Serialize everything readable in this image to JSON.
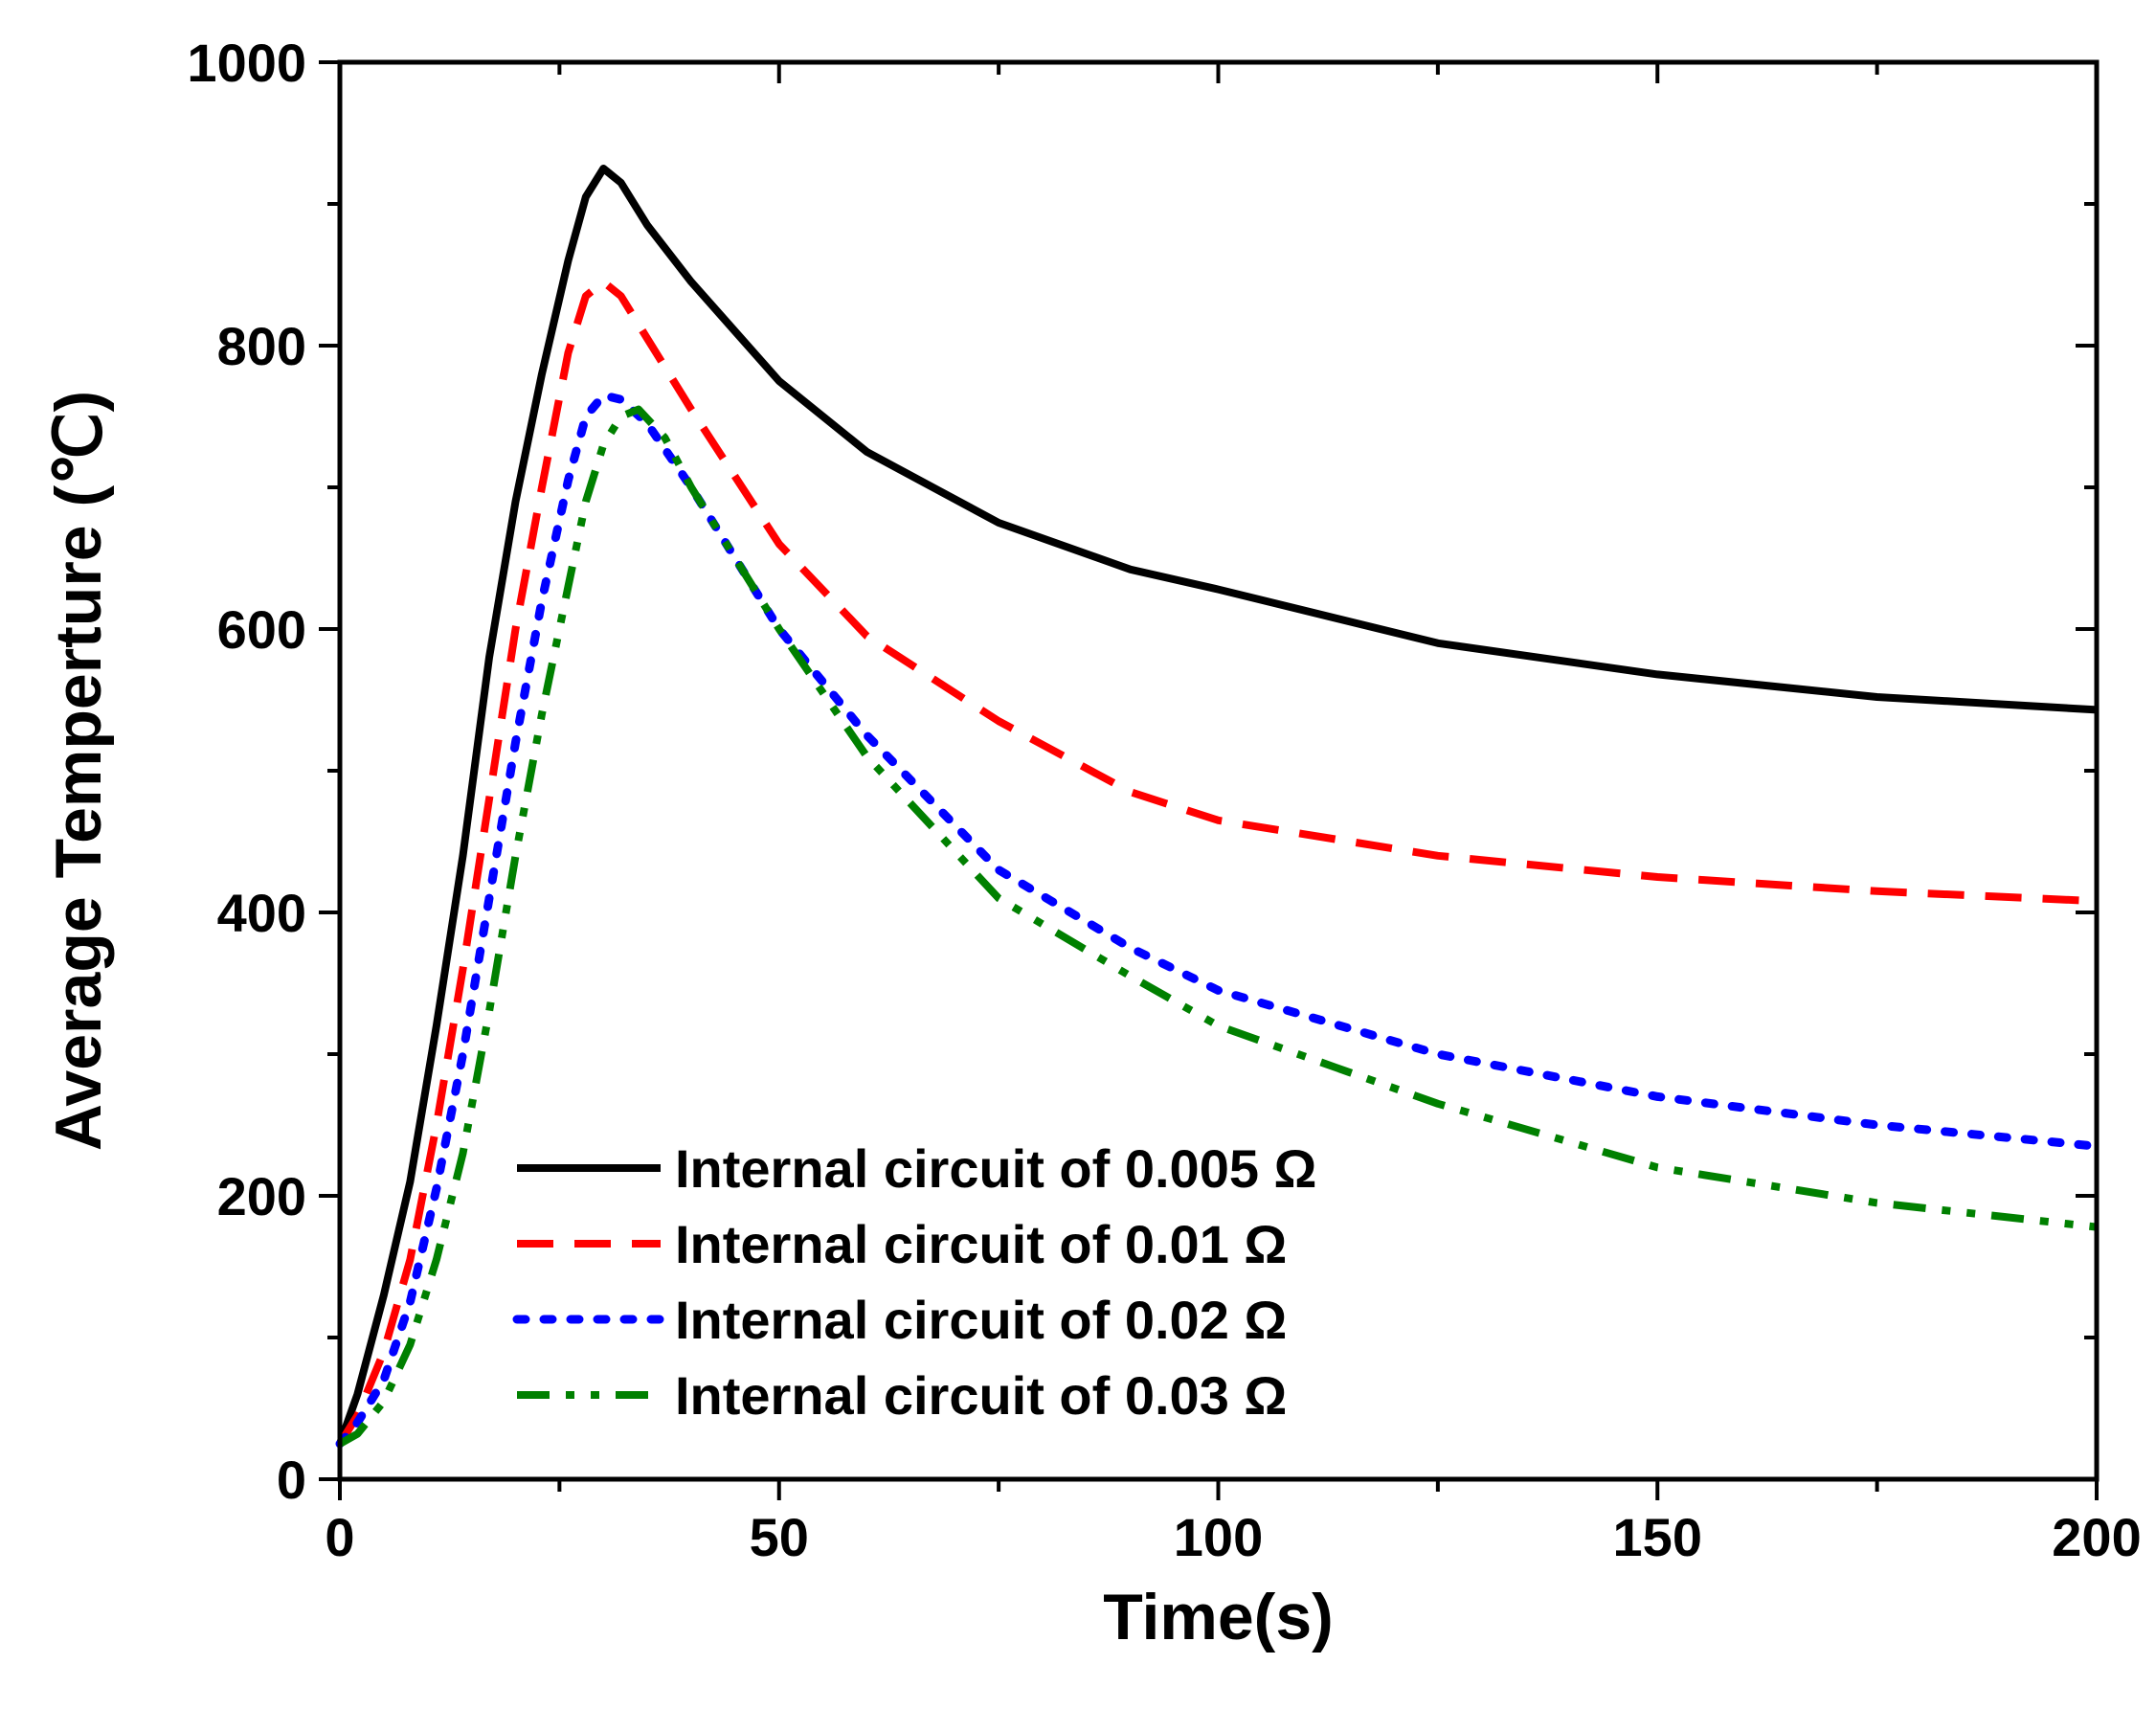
{
  "chart_data": {
    "type": "line",
    "xlabel": "Time(s)",
    "ylabel": "Average Temperture (℃)",
    "xlim": [
      0,
      200
    ],
    "ylim": [
      0,
      1000
    ],
    "x_ticks": [
      0,
      50,
      100,
      150,
      200
    ],
    "y_ticks": [
      0,
      200,
      400,
      600,
      800,
      1000
    ],
    "x_tick_labels": [
      "0",
      "50",
      "100",
      "150",
      "200"
    ],
    "y_tick_labels": [
      "0",
      "200",
      "400",
      "600",
      "800",
      "1000"
    ],
    "grid": false,
    "legend_position": "bottom-left",
    "series": [
      {
        "name": "Internal circuit of 0.005 Ω",
        "color": "#000000",
        "style": "solid",
        "x": [
          0,
          2,
          5,
          8,
          11,
          14,
          17,
          20,
          23,
          26,
          28,
          30,
          32,
          35,
          40,
          50,
          60,
          75,
          90,
          100,
          125,
          150,
          175,
          200
        ],
        "y": [
          25,
          60,
          130,
          210,
          320,
          440,
          580,
          690,
          780,
          860,
          905,
          925,
          915,
          885,
          845,
          775,
          725,
          675,
          642,
          628,
          590,
          568,
          552,
          543
        ]
      },
      {
        "name": "Internal circuit of 0.01 Ω",
        "color": "#ff0000",
        "style": "dashed",
        "x": [
          0,
          2,
          5,
          8,
          11,
          14,
          17,
          20,
          23,
          26,
          28,
          30,
          32,
          35,
          40,
          50,
          60,
          75,
          90,
          100,
          125,
          150,
          175,
          200
        ],
        "y": [
          25,
          45,
          90,
          155,
          250,
          360,
          480,
          600,
          700,
          795,
          835,
          845,
          835,
          805,
          755,
          660,
          595,
          535,
          485,
          465,
          440,
          425,
          415,
          408
        ]
      },
      {
        "name": "Internal circuit of 0.02 Ω",
        "color": "#0000ff",
        "style": "dotted",
        "x": [
          0,
          2,
          5,
          8,
          11,
          14,
          17,
          20,
          23,
          26,
          28,
          30,
          32,
          35,
          40,
          50,
          60,
          75,
          90,
          100,
          125,
          150,
          175,
          200
        ],
        "y": [
          25,
          40,
          70,
          125,
          205,
          300,
          410,
          520,
          620,
          705,
          750,
          765,
          762,
          745,
          700,
          600,
          525,
          430,
          375,
          345,
          300,
          270,
          250,
          235
        ]
      },
      {
        "name": "Internal circuit of 0.03 Ω",
        "color": "#008000",
        "style": "dashdotdot",
        "x": [
          0,
          2,
          5,
          8,
          11,
          14,
          17,
          20,
          23,
          26,
          28,
          30,
          32,
          34,
          37,
          40,
          50,
          60,
          75,
          90,
          100,
          125,
          150,
          175,
          200
        ],
        "y": [
          25,
          32,
          55,
          95,
          155,
          230,
          330,
          440,
          540,
          630,
          690,
          730,
          750,
          755,
          735,
          700,
          600,
          510,
          410,
          355,
          320,
          265,
          220,
          195,
          178
        ]
      }
    ]
  }
}
